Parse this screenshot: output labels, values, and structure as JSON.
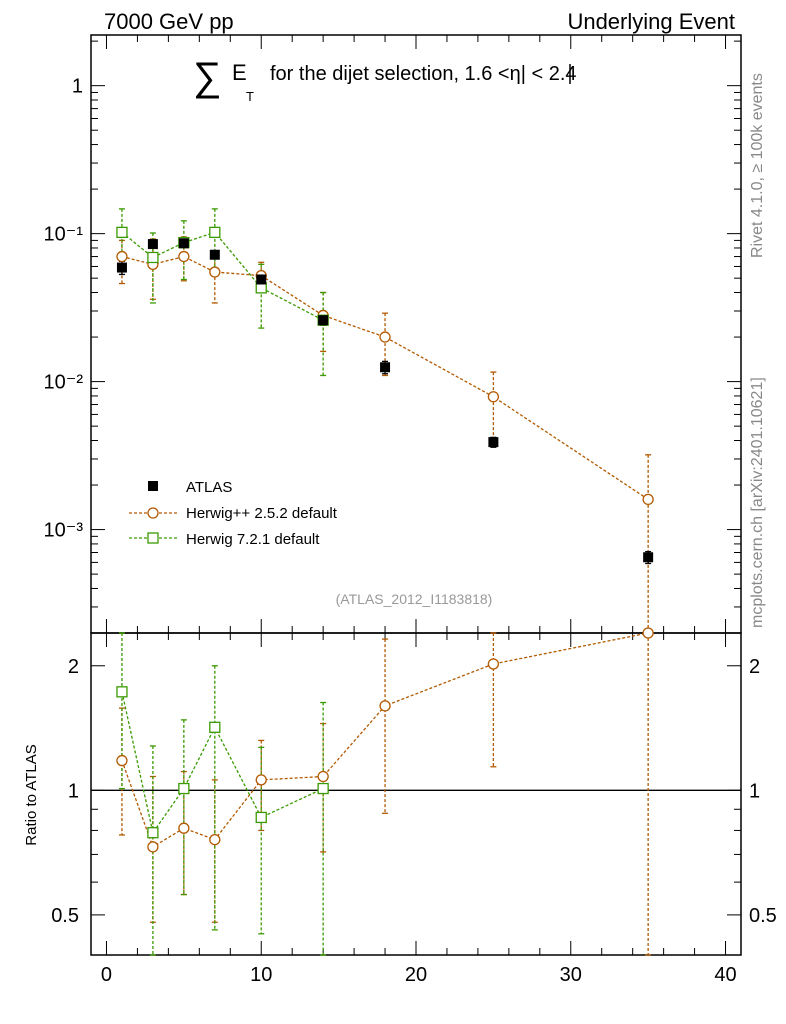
{
  "header": {
    "left": "7000 GeV pp",
    "right": "Underlying Event"
  },
  "side_text": {
    "top": "Rivet 4.1.0, ≥ 100k events",
    "bottom": "mcplots.cern.ch [arXiv:2401.10621]"
  },
  "analysis_id": "(ATLAS_2012_I1183818)",
  "title": {
    "sum": "∑",
    "e": "E",
    "t": "T",
    "rest": "for the dijet selection, 1.6 <η| < 2.4"
  },
  "legend": [
    {
      "label": "ATLAS"
    },
    {
      "label": "Herwig++ 2.5.2 default"
    },
    {
      "label": "Herwig 7.2.1 default"
    }
  ],
  "colors": {
    "data": "#000000",
    "herwigpp": "#b35900",
    "herwig7": "#3a9a00"
  },
  "chart_data": [
    {
      "type": "scatter",
      "yscale": "log",
      "xlim": [
        -1,
        41
      ],
      "ylim": [
        0.0002,
        2.2
      ],
      "ytick_labels": {
        "1": "1",
        "0.1": "10⁻¹",
        "0.01": "10⁻²",
        "0.001": "10⁻³"
      },
      "x": [
        1,
        3,
        5,
        7,
        10,
        14,
        18,
        25,
        35
      ],
      "series": [
        {
          "name": "ATLAS",
          "values": [
            0.059,
            0.085,
            0.086,
            0.072,
            0.049,
            0.026,
            0.0125,
            0.0039,
            0.00065
          ],
          "err_lo": [
            0.006,
            0.005,
            0.005,
            0.004,
            0.003,
            0.002,
            0.0012,
            0.0003,
            6e-05
          ],
          "err_hi": [
            0.006,
            0.005,
            0.005,
            0.004,
            0.003,
            0.002,
            0.0012,
            0.0003,
            6e-05
          ]
        },
        {
          "name": "Herwig++ 2.5.2 default",
          "values": [
            0.07,
            0.062,
            0.07,
            0.055,
            0.052,
            0.028,
            0.02,
            0.0079,
            0.0016
          ],
          "err_lo": [
            0.024,
            0.026,
            0.022,
            0.021,
            0.012,
            0.012,
            0.009,
            0.0042,
            0.0014
          ],
          "err_hi": [
            0.02,
            0.03,
            0.025,
            0.02,
            0.012,
            0.012,
            0.009,
            0.0037,
            0.0016
          ]
        },
        {
          "name": "Herwig 7.2.1 default",
          "values": [
            0.102,
            0.069,
            0.087,
            0.102,
            0.043,
            0.026
          ],
          "err_lo": [
            0.045,
            0.035,
            0.038,
            0.045,
            0.02,
            0.015
          ],
          "err_hi": [
            0.045,
            0.032,
            0.035,
            0.045,
            0.019,
            0.014
          ]
        }
      ]
    },
    {
      "type": "scatter",
      "ylabel": "Ratio to ATLAS",
      "ylim": [
        0.4,
        2.4
      ],
      "xlim": [
        -1,
        41
      ],
      "ytick_labels": [
        "0.5",
        "1",
        "2"
      ],
      "xtick_labels": [
        "0",
        "10",
        "20",
        "30",
        "40"
      ],
      "reference": 1,
      "x": [
        1,
        3,
        5,
        7,
        10,
        14,
        18,
        25,
        35
      ],
      "series": [
        {
          "name": "Herwig++ 2.5.2 default",
          "values": [
            1.18,
            0.73,
            0.81,
            0.76,
            1.06,
            1.08,
            1.6,
            2.02,
            2.4
          ],
          "err_lo": [
            0.4,
            0.25,
            0.25,
            0.28,
            0.26,
            0.37,
            0.72,
            0.88,
            2.0
          ],
          "err_hi": [
            0.4,
            0.35,
            0.3,
            0.3,
            0.26,
            0.37,
            0.72,
            0.88,
            2.0
          ]
        },
        {
          "name": "Herwig 7.2.1 default",
          "values": [
            1.73,
            0.79,
            1.01,
            1.42,
            0.86,
            1.01
          ],
          "err_lo": [
            0.72,
            0.49,
            0.45,
            0.96,
            0.41,
            0.62
          ],
          "err_hi": [
            0.72,
            0.49,
            0.47,
            0.58,
            0.41,
            0.62
          ]
        }
      ]
    }
  ]
}
